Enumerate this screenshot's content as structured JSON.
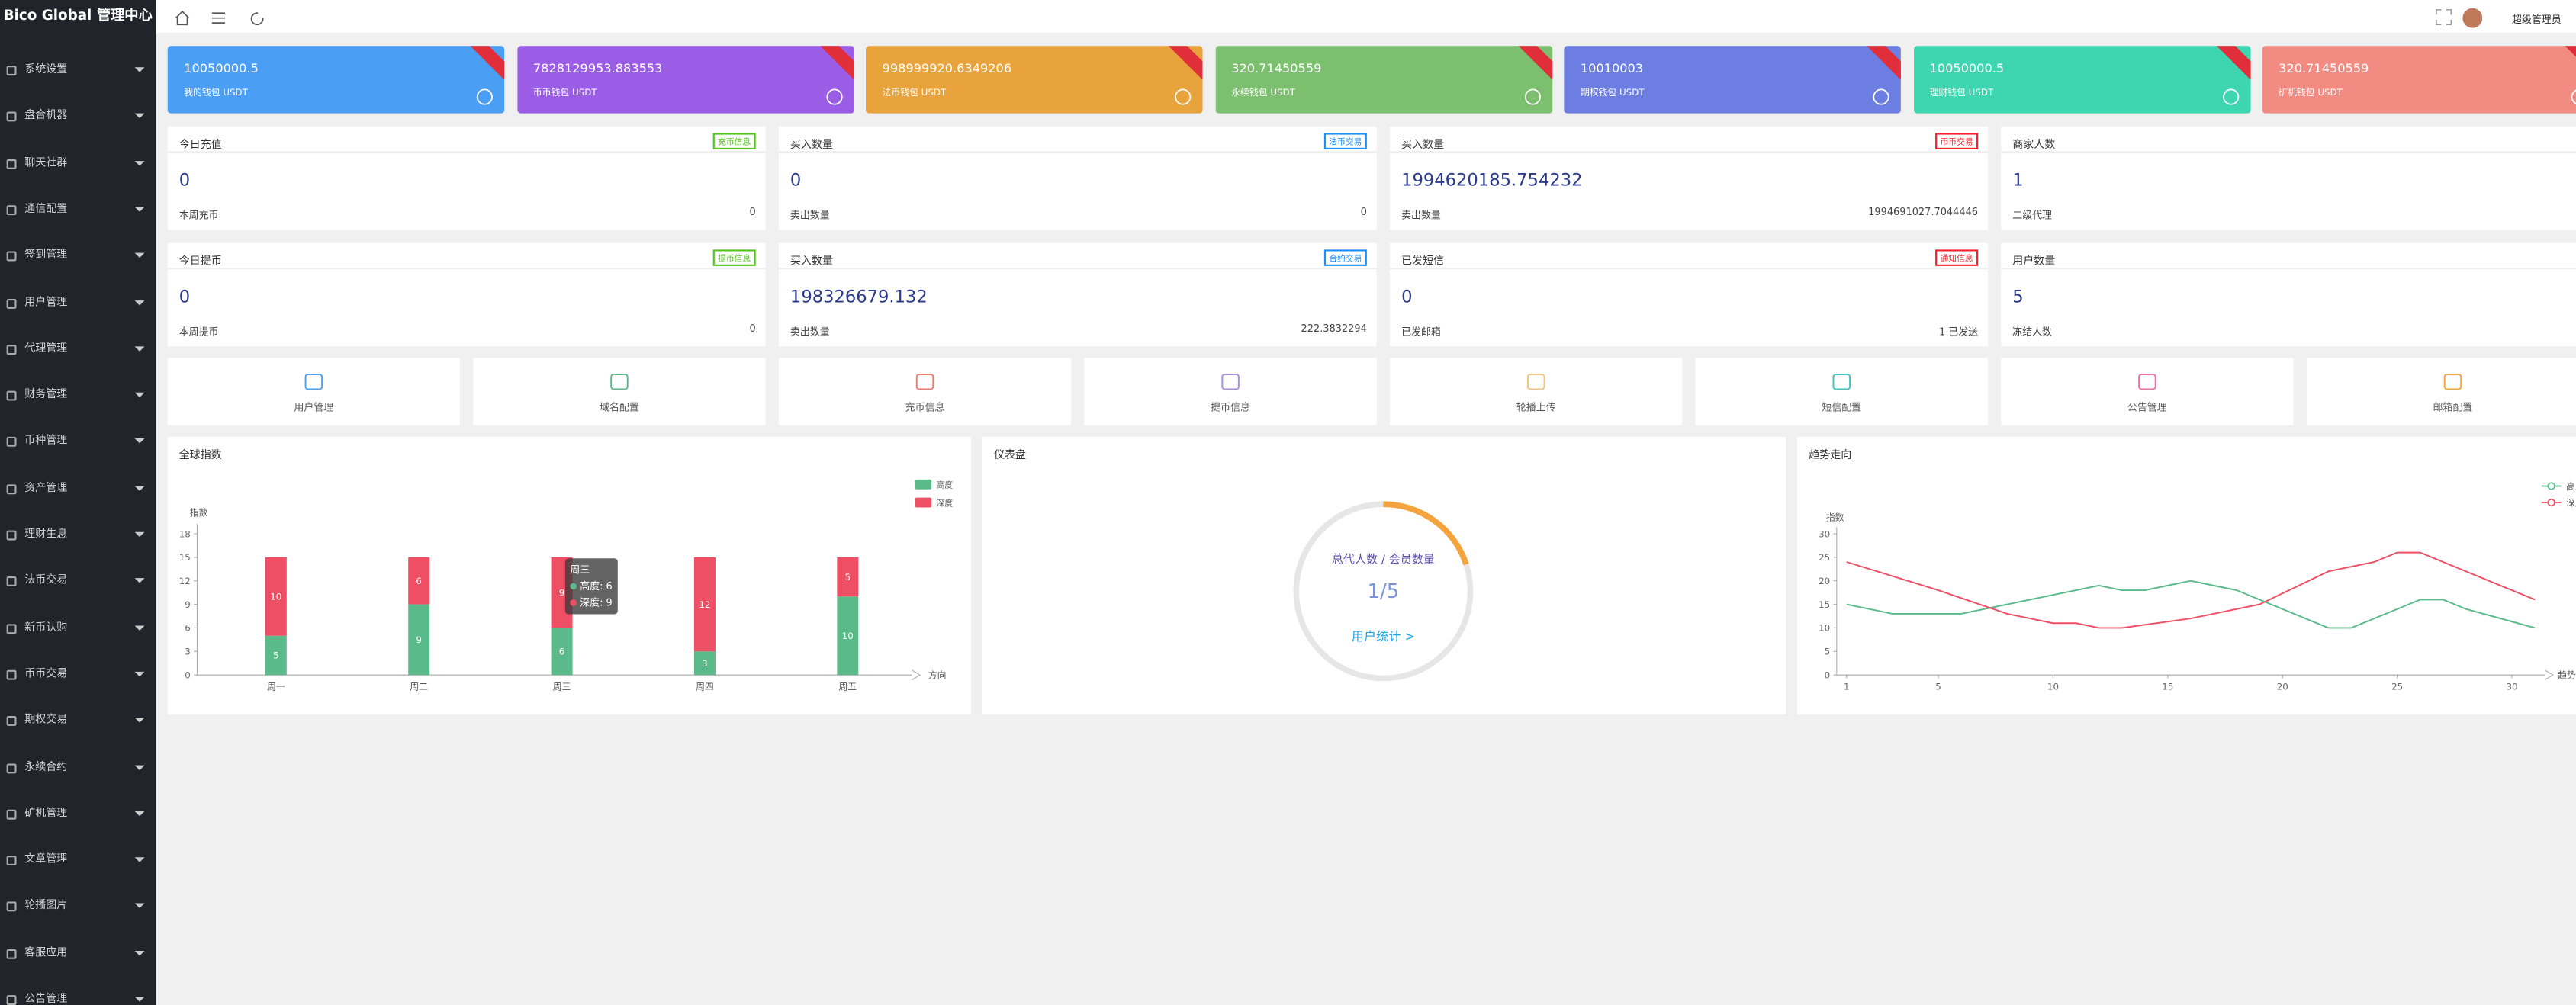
{
  "sidebar": {
    "brand": "Bico Global 管理中心",
    "menu": [
      "系统设置",
      "盘合机器",
      "聊天社群",
      "通信配置",
      "签到管理",
      "用户管理",
      "代理管理",
      "财务管理",
      "币种管理",
      "资产管理",
      "理财生息",
      "法币交易",
      "新币认购",
      "币币交易",
      "期权交易",
      "永续合约",
      "矿机管理",
      "文章管理",
      "轮播图片",
      "客服应用",
      "公告管理"
    ]
  },
  "topbar": {
    "user": "超级管理员"
  },
  "wallets": [
    {
      "value": "10050000.5",
      "label": "我的钱包 USDT",
      "color": "#4a9ff5"
    },
    {
      "value": "7828129953.883553",
      "label": "币币钱包 USDT",
      "color": "#9b5de5"
    },
    {
      "value": "998999920.6349206",
      "label": "法币钱包 USDT",
      "color": "#e8a33d"
    },
    {
      "value": "320.71450559",
      "label": "永续钱包 USDT",
      "color": "#7cbf6e"
    },
    {
      "value": "10010003",
      "label": "期权钱包 USDT",
      "color": "#6c7ee1"
    },
    {
      "value": "10050000.5",
      "label": "理财钱包 USDT",
      "color": "#3dd6b0"
    },
    {
      "value": "320.71450559",
      "label": "矿机钱包 USDT",
      "color": "#f28b82"
    }
  ],
  "stats": [
    {
      "title": "今日充值",
      "tag": "充币信息",
      "tag_color": "#52c41a",
      "value": "0",
      "foot": "本周充币",
      "foot_value": "0"
    },
    {
      "title": "买入数量",
      "tag": "法币交易",
      "tag_color": "#1890ff",
      "value": "0",
      "foot": "卖出数量",
      "foot_value": "0"
    },
    {
      "title": "买入数量",
      "tag": "币币交易",
      "tag_color": "#f5222d",
      "value": "1994620185.754232",
      "foot": "卖出数量",
      "foot_value": "1994691027.7044446"
    },
    {
      "title": "商家人数",
      "value": "1",
      "foot": "二级代理"
    },
    {
      "title": "今日提币",
      "tag": "提币信息",
      "tag_color": "#52c41a",
      "value": "0",
      "foot": "本周提币",
      "foot_value": "0"
    },
    {
      "title": "买入数量",
      "tag": "合约交易",
      "tag_color": "#1890ff",
      "value": "198326679.132",
      "foot": "卖出数量",
      "foot_value": "222.3832294"
    },
    {
      "title": "已发短信",
      "tag": "通知信息",
      "tag_color": "#f5222d",
      "value": "0",
      "foot": "已发邮箱",
      "foot_value": "1 已发送"
    },
    {
      "title": "用户数量",
      "value": "5",
      "foot": "冻结人数"
    }
  ],
  "shortcuts": [
    {
      "label": "用户管理",
      "color": "#4a9ff5"
    },
    {
      "label": "域名配置",
      "color": "#5bba8a"
    },
    {
      "label": "充币信息",
      "color": "#f07b6a"
    },
    {
      "label": "提币信息",
      "color": "#a98ee0"
    },
    {
      "label": "轮播上传",
      "color": "#f5c27a"
    },
    {
      "label": "短信配置",
      "color": "#3cc6c6"
    },
    {
      "label": "公告管理",
      "color": "#f06ea0"
    },
    {
      "label": "邮箱配置",
      "color": "#f5a33d"
    }
  ],
  "charts": [
    {
      "type": "bar",
      "title": "全球指数",
      "y_label": "指数",
      "x_label": "方向",
      "categories": [
        "周一",
        "周二",
        "周三",
        "周四",
        "周五"
      ],
      "series": [
        {
          "name": "高度",
          "color": "#5bba8a",
          "values": [
            5,
            9,
            6,
            3,
            10
          ]
        },
        {
          "name": "深度",
          "color": "#ee4f64",
          "values": [
            10,
            6,
            9,
            12,
            5
          ]
        }
      ],
      "ylim": [
        0,
        18
      ],
      "yticks": [
        0,
        3,
        6,
        9,
        12,
        15,
        18
      ],
      "tooltip_index": 2
    },
    {
      "type": "gauge",
      "title": "仪表盘",
      "caption": "总代人数 / 会员数量",
      "numerator": 1,
      "denominator": 5,
      "link": "用户统计 >"
    },
    {
      "type": "line",
      "title": "趋势走向",
      "y_label": "指数",
      "x_label": "趋势",
      "series": [
        {
          "name": "高度",
          "color": "#5bba8a",
          "x": [
            1,
            3,
            5,
            6,
            8,
            10,
            11,
            12,
            13,
            14,
            15,
            16,
            17,
            18,
            20,
            22,
            23,
            25,
            26,
            27,
            28,
            31
          ],
          "values": [
            15,
            13,
            13,
            13,
            15,
            17,
            18,
            19,
            18,
            18,
            19,
            20,
            19,
            18,
            14,
            10,
            10,
            14,
            16,
            16,
            14,
            10
          ]
        },
        {
          "name": "深度",
          "color": "#ee4f64",
          "x": [
            1,
            5,
            8,
            10,
            11,
            12,
            13,
            16,
            19,
            22,
            24,
            25,
            26,
            28,
            31
          ],
          "values": [
            24,
            18,
            13,
            11,
            11,
            10,
            10,
            12,
            15,
            22,
            24,
            26,
            26,
            22,
            16
          ]
        }
      ],
      "xlim": [
        1,
        31
      ],
      "xticks": [
        1,
        5,
        10,
        15,
        20,
        25,
        30
      ],
      "ylim": [
        0,
        30
      ],
      "yticks": [
        0,
        5,
        10,
        15,
        20,
        25,
        30
      ]
    }
  ]
}
